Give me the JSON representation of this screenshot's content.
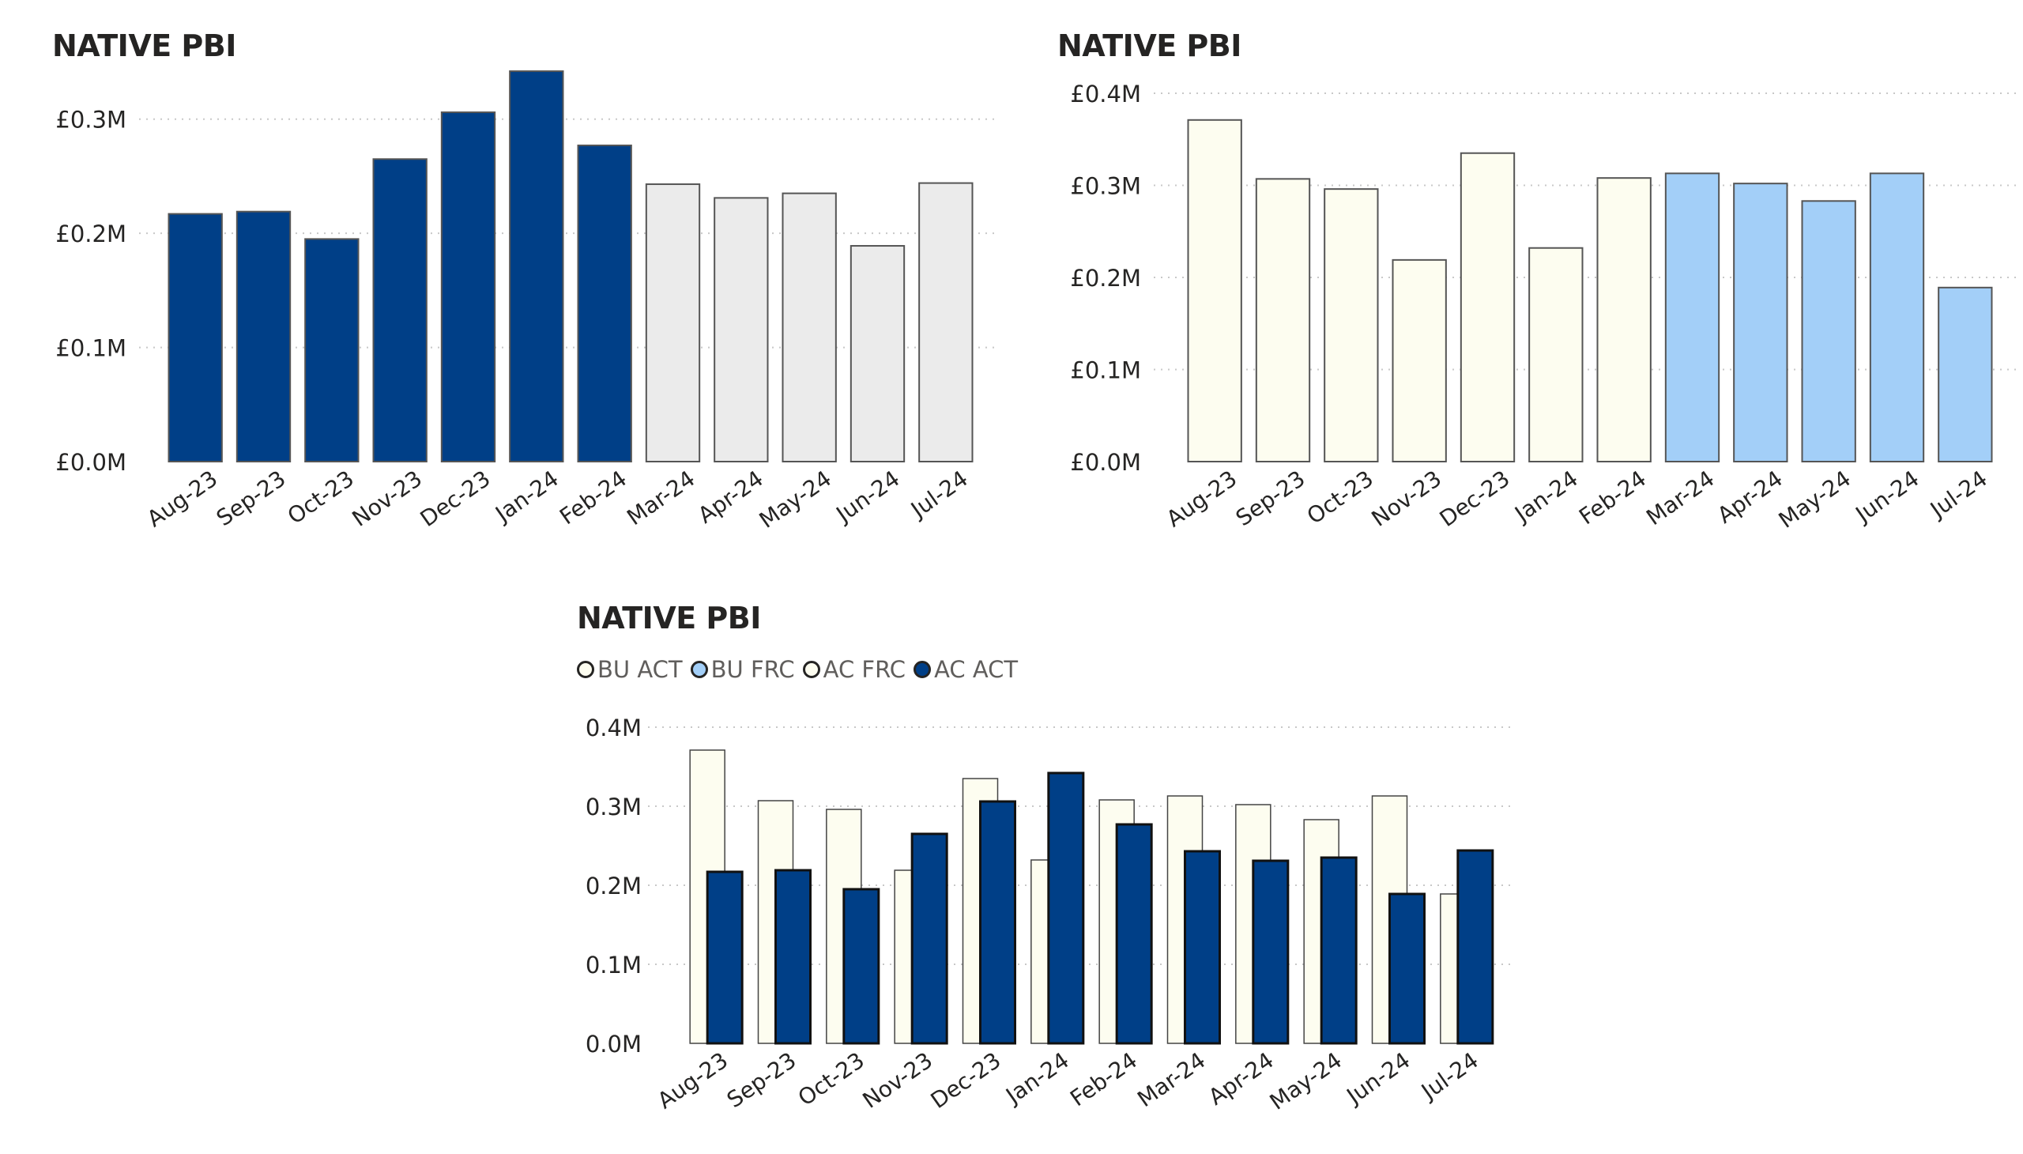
{
  "chart_data": [
    {
      "type": "bar",
      "title": "NATIVE PBI",
      "categories": [
        "Aug-23",
        "Sep-23",
        "Oct-23",
        "Nov-23",
        "Dec-23",
        "Jan-24",
        "Feb-24",
        "Mar-24",
        "Apr-24",
        "May-24",
        "Jun-24",
        "Jul-24"
      ],
      "values": [
        0.217,
        0.219,
        0.195,
        0.265,
        0.306,
        0.342,
        0.277,
        0.243,
        0.231,
        0.235,
        0.189,
        0.244
      ],
      "bar_colors": [
        "#003f87",
        "#003f87",
        "#003f87",
        "#003f87",
        "#003f87",
        "#003f87",
        "#003f87",
        "#ebebeb",
        "#ebebeb",
        "#ebebeb",
        "#ebebeb",
        "#ebebeb"
      ],
      "ylim": [
        0,
        0.35
      ],
      "yticks": [
        0,
        0.1,
        0.2,
        0.3
      ],
      "ytick_labels": [
        "£0.0M",
        "£0.1M",
        "£0.2M",
        "£0.3M"
      ],
      "grid": true
    },
    {
      "type": "bar",
      "title": "NATIVE PBI",
      "categories": [
        "Aug-23",
        "Sep-23",
        "Oct-23",
        "Nov-23",
        "Dec-23",
        "Jan-24",
        "Feb-24",
        "Mar-24",
        "Apr-24",
        "May-24",
        "Jun-24",
        "Jul-24"
      ],
      "values": [
        0.371,
        0.307,
        0.296,
        0.219,
        0.335,
        0.232,
        0.308,
        0.313,
        0.302,
        0.283,
        0.313,
        0.189
      ],
      "bar_colors": [
        "#fdfdf0",
        "#fdfdf0",
        "#fdfdf0",
        "#fdfdf0",
        "#fdfdf0",
        "#fdfdf0",
        "#fdfdf0",
        "#a3cff8",
        "#a3cff8",
        "#a3cff8",
        "#a3cff8",
        "#a3cff8"
      ],
      "ylim": [
        0,
        0.4
      ],
      "yticks": [
        0,
        0.1,
        0.2,
        0.3,
        0.4
      ],
      "ytick_labels": [
        "£0.0M",
        "£0.1M",
        "£0.2M",
        "£0.3M",
        "£0.4M"
      ],
      "grid": true
    },
    {
      "type": "bar",
      "title": "NATIVE PBI",
      "legend": [
        {
          "name": "BU ACT",
          "color": "#fdfdf0"
        },
        {
          "name": "BU FRC",
          "color": "#a3cff8"
        },
        {
          "name": "AC FRC",
          "color": "#fdfdf0"
        },
        {
          "name": "AC ACT",
          "color": "#003f87"
        }
      ],
      "legend_position": "top-left",
      "categories": [
        "Aug-23",
        "Sep-23",
        "Oct-23",
        "Nov-23",
        "Dec-23",
        "Jan-24",
        "Feb-24",
        "Mar-24",
        "Apr-24",
        "May-24",
        "Jun-24",
        "Jul-24"
      ],
      "series": [
        {
          "values": [
            0.371,
            0.307,
            0.296,
            0.219,
            0.335,
            0.232,
            0.308,
            0.313,
            0.302,
            0.283,
            0.313,
            0.189
          ],
          "color": "#fdfdf0"
        },
        {
          "values": [
            0.217,
            0.219,
            0.195,
            0.265,
            0.306,
            0.342,
            0.277,
            0.243,
            0.231,
            0.235,
            0.189,
            0.244
          ],
          "color": "#003f87"
        }
      ],
      "ylim": [
        0,
        0.4
      ],
      "yticks": [
        0,
        0.1,
        0.2,
        0.3,
        0.4
      ],
      "ytick_labels": [
        "0.0M",
        "0.1M",
        "0.2M",
        "0.3M",
        "0.4M"
      ],
      "grid": true
    }
  ]
}
